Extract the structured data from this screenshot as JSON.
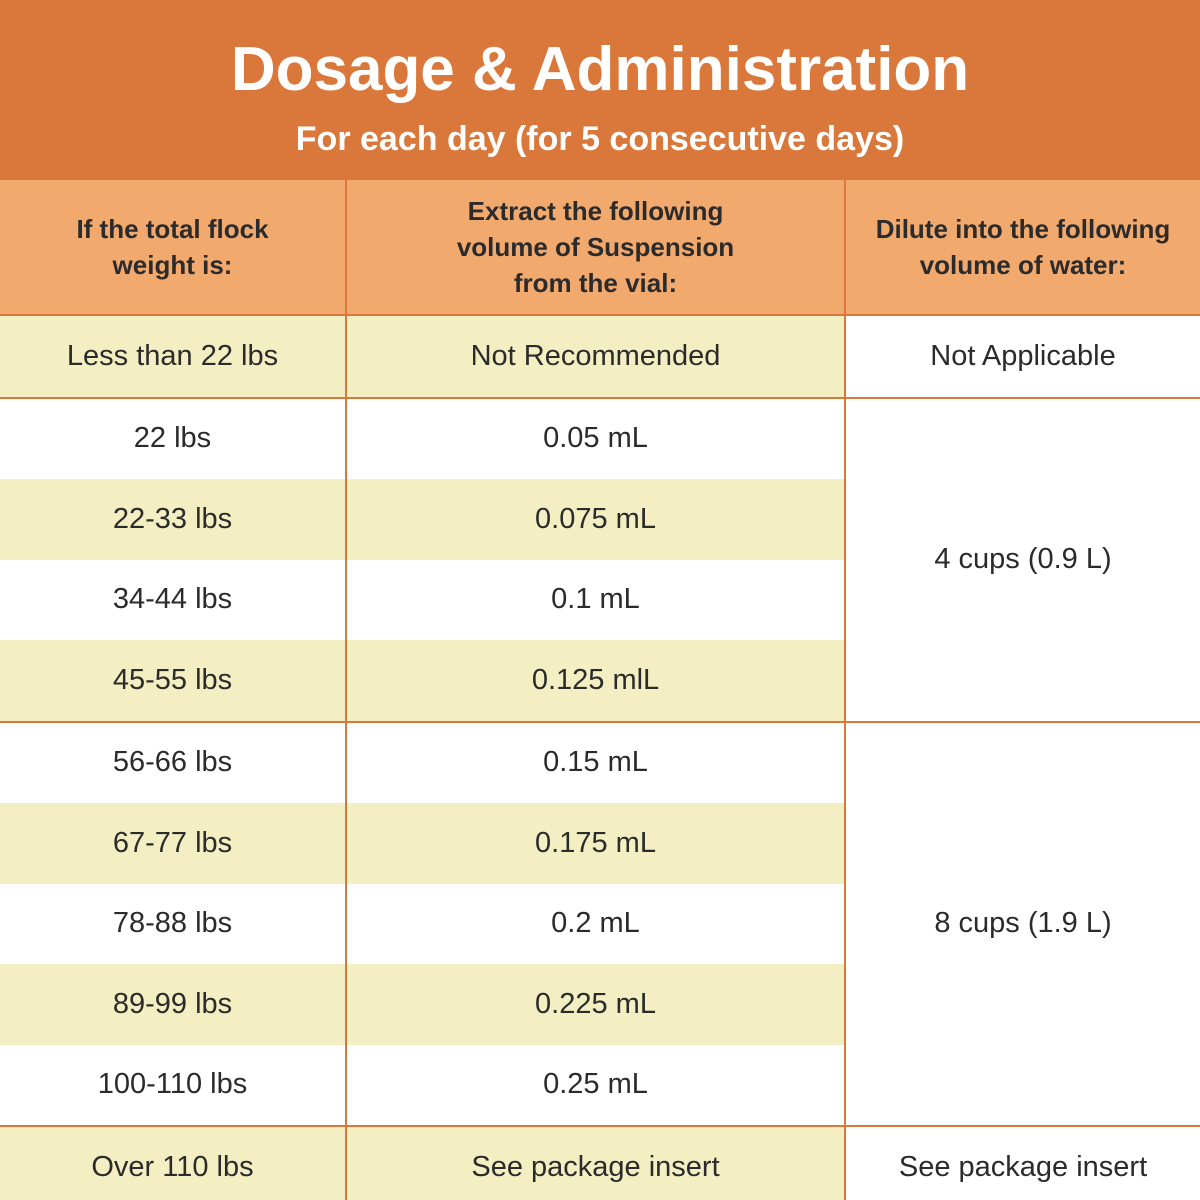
{
  "header": {
    "title": "Dosage & Administration",
    "subtitle": "For each day (for 5 consecutive days)"
  },
  "columns": [
    "If the total flock weight is:",
    "Extract the following volume of Suspension from the vial:",
    "Dilute into the following volume of water:"
  ],
  "rows": [
    {
      "weight": "Less than 22 lbs",
      "volume": "Not Recommended",
      "water": "Not Applicable"
    },
    {
      "weight": "22 lbs",
      "volume": "0.05 mL"
    },
    {
      "weight": "22-33 lbs",
      "volume": "0.075 mL"
    },
    {
      "weight": "34-44 lbs",
      "volume": "0.1 mL"
    },
    {
      "weight": "45-55 lbs",
      "volume": "0.125 mlL"
    },
    {
      "weight": "56-66 lbs",
      "volume": "0.15 mL"
    },
    {
      "weight": "67-77 lbs",
      "volume": "0.175 mL"
    },
    {
      "weight": "78-88 lbs",
      "volume": "0.2 mL"
    },
    {
      "weight": "89-99 lbs",
      "volume": "0.225 mL"
    },
    {
      "weight": "100-110 lbs",
      "volume": "0.25 mL"
    },
    {
      "weight": "Over 110 lbs",
      "volume": "See package insert",
      "water": "See package insert"
    }
  ],
  "water_groups": [
    "4 cups (0.9 L)",
    "8 cups (1.9 L)"
  ],
  "colors": {
    "header": "#d9783a",
    "column_header": "#f2a96e",
    "row_tint": "#f3efc2",
    "border": "#d9783a"
  }
}
